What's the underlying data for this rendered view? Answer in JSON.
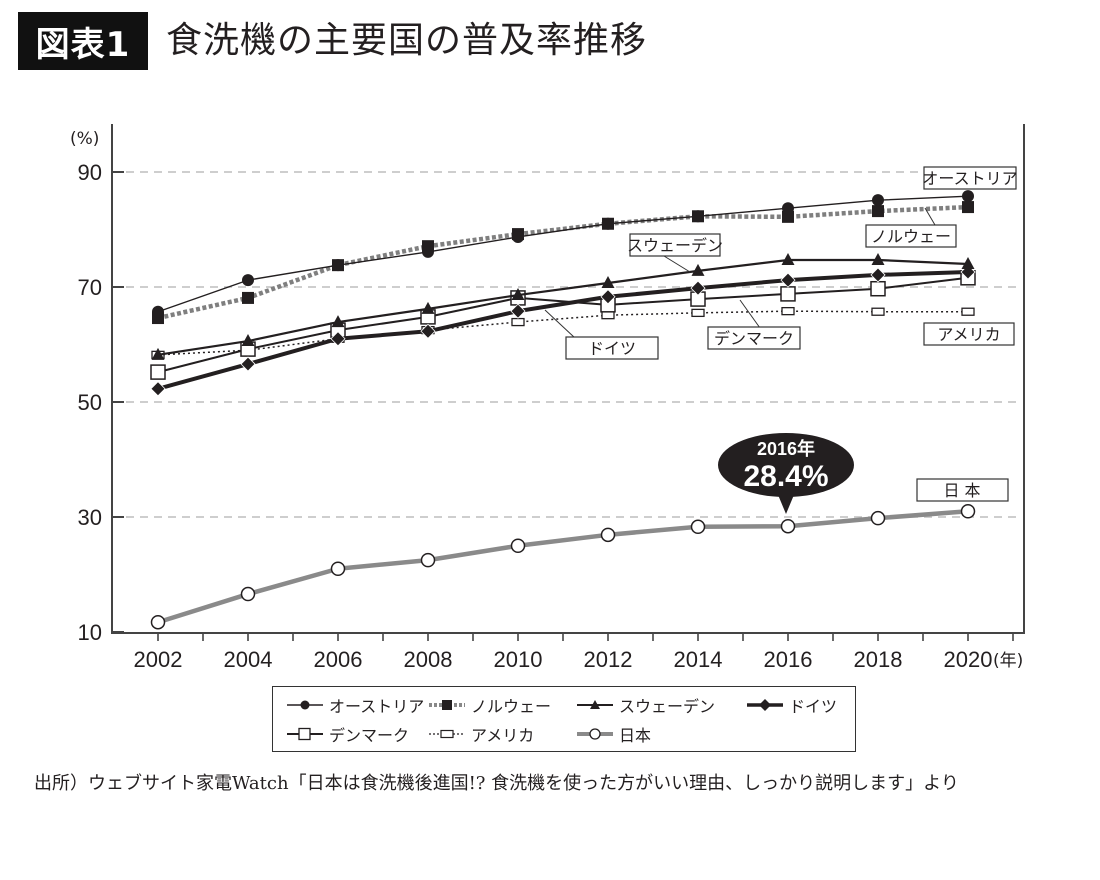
{
  "header": {
    "figure_tag": "図表1",
    "title": "食洗機の主要国の普及率推移"
  },
  "chart_data": {
    "type": "line",
    "title": "食洗機の主要国の普及率推移",
    "ylabel": "(%)",
    "xlabel": "(年)",
    "ylim": [
      10,
      98
    ],
    "yticks": [
      10,
      30,
      50,
      70,
      90
    ],
    "grid": "horizontal dashed at 30, 50, 70, 90",
    "x": [
      2002,
      2004,
      2006,
      2008,
      2010,
      2012,
      2014,
      2016,
      2018,
      2020
    ],
    "xlim": [
      2000.8,
      2021.2
    ],
    "xtick_labels": [
      "2002",
      "2004",
      "2006",
      "2008",
      "2010",
      "2012",
      "2014",
      "2016",
      "2018",
      "2020"
    ],
    "series": [
      {
        "key": "austria",
        "name": "オーストリア",
        "values": [
          65.7,
          71.2,
          73.8,
          76.1,
          78.7,
          81.0,
          82.3,
          83.7,
          85.1,
          85.8
        ],
        "color": "#231f20",
        "marker": "filled-circle",
        "line": "thin-solid"
      },
      {
        "key": "norway",
        "name": "ノルウェー",
        "values": [
          64.6,
          68.1,
          73.8,
          77.1,
          79.2,
          81.0,
          82.3,
          82.2,
          83.2,
          83.9
        ],
        "color": "#808080",
        "marker": "filled-square",
        "line": "thick-dotted-gray"
      },
      {
        "key": "sweden",
        "name": "スウェーデン",
        "values": [
          58.2,
          60.6,
          63.9,
          66.2,
          68.6,
          70.7,
          72.8,
          74.7,
          74.7,
          74.0
        ],
        "color": "#231f20",
        "marker": "filled-triangle",
        "line": "solid"
      },
      {
        "key": "germany",
        "name": "ドイツ",
        "values": [
          52.3,
          56.6,
          61.0,
          62.3,
          65.8,
          68.3,
          69.8,
          71.2,
          72.1,
          72.6
        ],
        "color": "#231f20",
        "marker": "filled-diamond",
        "line": "thick-solid"
      },
      {
        "key": "denmark",
        "name": "デンマーク",
        "values": [
          55.2,
          59.2,
          62.5,
          64.8,
          68.1,
          66.9,
          67.9,
          68.8,
          69.7,
          71.6
        ],
        "color": "#231f20",
        "marker": "open-square",
        "line": "solid"
      },
      {
        "key": "usa",
        "name": "アメリカ",
        "values": [
          58.2,
          59.0,
          61.0,
          62.5,
          63.9,
          65.1,
          65.5,
          65.8,
          65.7,
          65.7
        ],
        "color": "#231f20",
        "marker": "open-rect",
        "line": "dotted"
      },
      {
        "key": "japan",
        "name": "日本",
        "values": [
          11.7,
          16.6,
          21.0,
          22.5,
          25.0,
          26.9,
          28.3,
          28.4,
          29.8,
          31.0
        ],
        "color": "#8a8a8a",
        "marker": "open-circle",
        "line": "thick-gray"
      }
    ],
    "annotations": {
      "callout_year": "2016年",
      "callout_value": "28.4%",
      "series_labels": {
        "austria": "オーストリア",
        "norway": "ノルウェー",
        "sweden": "スウェーデン",
        "germany": "ドイツ",
        "denmark": "デンマーク",
        "usa": "アメリカ",
        "japan": "日 本"
      }
    },
    "legend": {
      "placement": "bottom-center",
      "items": [
        "オーストリア",
        "ノルウェー",
        "スウェーデン",
        "ドイツ",
        "デンマーク",
        "アメリカ",
        "日本"
      ]
    }
  },
  "source": "出所）ウェブサイト家電Watch「日本は食洗機後進国!? 食洗機を使った方がいい理由、しっかり説明します」より"
}
